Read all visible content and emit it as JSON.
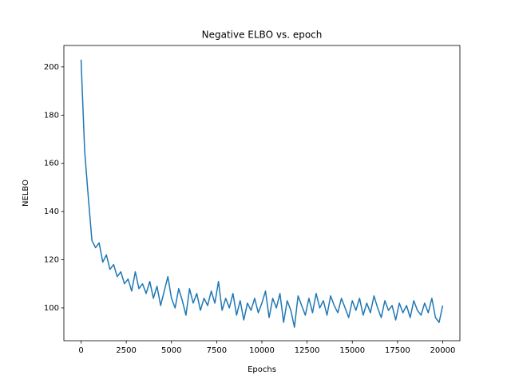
{
  "chart_data": {
    "type": "line",
    "title": "Negative ELBO vs. epoch",
    "xlabel": "Epochs",
    "ylabel": "NELBO",
    "x": [
      0,
      200,
      400,
      600,
      800,
      1000,
      1200,
      1400,
      1600,
      1800,
      2000,
      2200,
      2400,
      2600,
      2800,
      3000,
      3200,
      3400,
      3600,
      3800,
      4000,
      4200,
      4400,
      4600,
      4800,
      5000,
      5200,
      5400,
      5600,
      5800,
      6000,
      6200,
      6400,
      6600,
      6800,
      7000,
      7200,
      7400,
      7600,
      7800,
      8000,
      8200,
      8400,
      8600,
      8800,
      9000,
      9200,
      9400,
      9600,
      9800,
      10000,
      10200,
      10400,
      10600,
      10800,
      11000,
      11200,
      11400,
      11600,
      11800,
      12000,
      12200,
      12400,
      12600,
      12800,
      13000,
      13200,
      13400,
      13600,
      13800,
      14000,
      14200,
      14400,
      14600,
      14800,
      15000,
      15200,
      15400,
      15600,
      15800,
      16000,
      16200,
      16400,
      16600,
      16800,
      17000,
      17200,
      17400,
      17600,
      17800,
      18000,
      18200,
      18400,
      18600,
      18800,
      19000,
      19200,
      19400,
      19600,
      19800,
      20000
    ],
    "series": [
      {
        "name": "NELBO",
        "color": "#1f77b4",
        "values": [
          203,
          165,
          146,
          128,
          125,
          127,
          119,
          122,
          116,
          118,
          113,
          115,
          110,
          112,
          107,
          115,
          108,
          110,
          106,
          111,
          104,
          109,
          101,
          107,
          113,
          104,
          100,
          108,
          103,
          97,
          108,
          102,
          106,
          99,
          104,
          101,
          107,
          102,
          111,
          99,
          104,
          100,
          106,
          97,
          103,
          95,
          102,
          99,
          104,
          98,
          102,
          107,
          96,
          104,
          100,
          106,
          94,
          103,
          99,
          92,
          105,
          101,
          97,
          104,
          98,
          106,
          100,
          103,
          97,
          105,
          101,
          98,
          104,
          100,
          96,
          103,
          99,
          104,
          97,
          102,
          98,
          105,
          100,
          96,
          103,
          99,
          101,
          95,
          102,
          98,
          101,
          96,
          103,
          99,
          97,
          102,
          98,
          104,
          96,
          94,
          101
        ]
      }
    ],
    "xlim": [
      -950,
      20950
    ],
    "ylim": [
      86.4,
      208.9
    ],
    "xticks": [
      0,
      2500,
      5000,
      7500,
      10000,
      12500,
      15000,
      17500,
      20000
    ],
    "yticks": [
      100,
      120,
      140,
      160,
      180,
      200
    ]
  }
}
